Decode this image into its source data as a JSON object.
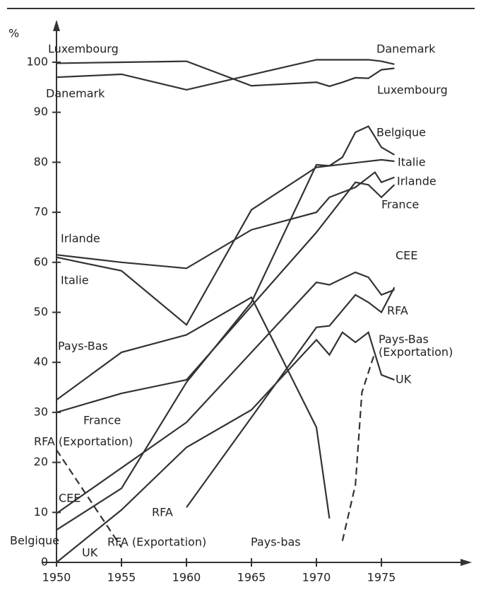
{
  "chart_data": {
    "type": "line",
    "y_unit": "%",
    "xlim": [
      1950,
      1975
    ],
    "xticks": [
      1950,
      1955,
      1960,
      1965,
      1970,
      1975
    ],
    "ylim": [
      0,
      100
    ],
    "yticks": [
      0,
      10,
      20,
      30,
      40,
      50,
      60,
      70,
      80,
      90,
      100
    ],
    "series": [
      {
        "name": "Luxembourg",
        "color": "#333333",
        "dash": false,
        "x": [
          1950,
          1955,
          1960,
          1965,
          1970,
          1971,
          1972,
          1973,
          1974,
          1975,
          1976
        ],
        "values": [
          99.8,
          100,
          100.2,
          95.3,
          96,
          95.2,
          96,
          96.9,
          96.8,
          98.5,
          98.8
        ]
      },
      {
        "name": "Danemark",
        "color": "#333333",
        "dash": false,
        "x": [
          1950,
          1955,
          1960,
          1965,
          1970,
          1974,
          1975,
          1976
        ],
        "values": [
          97,
          97.6,
          94.5,
          97.5,
          100.5,
          100.5,
          100.2,
          99.6
        ]
      },
      {
        "name": "Belgique",
        "color": "#333333",
        "dash": false,
        "x": [
          1950,
          1955,
          1960,
          1965,
          1970,
          1971,
          1972,
          1973,
          1974,
          1975,
          1976
        ],
        "values": [
          6.5,
          14.8,
          36,
          52,
          79.5,
          79.3,
          81,
          86,
          87.2,
          83,
          81.5
        ]
      },
      {
        "name": "Italie",
        "color": "#333333",
        "dash": false,
        "x": [
          1950,
          1955,
          1960,
          1965,
          1970,
          1975,
          1976
        ],
        "values": [
          61,
          58.3,
          47.5,
          70.5,
          79,
          80.5,
          80.2
        ]
      },
      {
        "name": "Irlande",
        "color": "#333333",
        "dash": false,
        "x": [
          1950,
          1955,
          1960,
          1965,
          1970,
          1971,
          1973,
          1974.5,
          1975,
          1976
        ],
        "values": [
          61.5,
          60,
          58.8,
          66.5,
          70,
          73,
          75,
          78,
          76,
          77
        ]
      },
      {
        "name": "France",
        "color": "#333333",
        "dash": false,
        "x": [
          1950,
          1955,
          1960,
          1970,
          1973,
          1974,
          1975,
          1976
        ],
        "values": [
          30,
          33.8,
          36.5,
          66,
          76,
          75.5,
          73,
          75.5
        ]
      },
      {
        "name": "CEE",
        "color": "#333333",
        "dash": false,
        "x": [
          1950,
          1960,
          1965,
          1970,
          1971,
          1973,
          1974,
          1975,
          1976
        ],
        "values": [
          9.8,
          28,
          42,
          56,
          55.5,
          58,
          57,
          53.5,
          54.5
        ]
      },
      {
        "name": "RFA",
        "color": "#333333",
        "dash": false,
        "x": [
          1960,
          1965,
          1970,
          1971,
          1973,
          1974,
          1975,
          1976
        ],
        "values": [
          11,
          29,
          47,
          47.3,
          53.5,
          52,
          50,
          55
        ]
      },
      {
        "name": "Pays-Bas",
        "color": "#333333",
        "dash": false,
        "x": [
          1950,
          1955,
          1960,
          1965,
          1970,
          1971
        ],
        "values": [
          32.5,
          42,
          45.5,
          53,
          27,
          8.8
        ]
      },
      {
        "name": "UK",
        "color": "#333333",
        "dash": false,
        "x": [
          1950,
          1955,
          1960,
          1965,
          1970,
          1971,
          1972,
          1973,
          1974,
          1975,
          1976
        ],
        "values": [
          0,
          10.5,
          23,
          30.5,
          44.5,
          41.5,
          46,
          44,
          46,
          37.5,
          36.5
        ]
      },
      {
        "name": "Pays-Bas (Exportation)",
        "color": "#333333",
        "dash": true,
        "x": [
          1972,
          1973,
          1973.5,
          1974.5
        ],
        "values": [
          4.3,
          15.5,
          34,
          42
        ]
      },
      {
        "name": "RFA (Exportation)",
        "color": "#333333",
        "dash": true,
        "x": [
          1950,
          1955
        ],
        "values": [
          22.5,
          3
        ]
      }
    ],
    "annotations": [
      "Danemark",
      "Luxembourg",
      "Irlande",
      "Italie",
      "France",
      "RFA (Exportation)",
      "CEE",
      "Belgique",
      "UK",
      "RFA",
      "Pays-bas"
    ]
  }
}
